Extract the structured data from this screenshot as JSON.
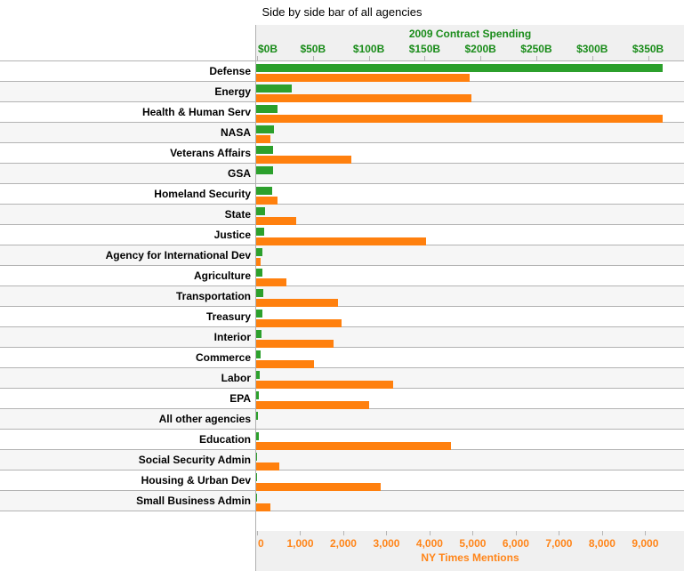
{
  "title": "Side by side bar of all agencies",
  "colors": {
    "spending_bar": "#2ca02c",
    "mentions_bar": "#ff800e",
    "spending_text": "#1a8c1a",
    "mentions_text": "#ff8519",
    "row_alt_bg": "#f6f6f6",
    "band_bg": "#f0f0f0",
    "grid_line": "#b3b3b3"
  },
  "top_axis": {
    "title": "2009 Contract Spending",
    "ticks": [
      {
        "label": "$0B",
        "value": 0
      },
      {
        "label": "$50B",
        "value": 50
      },
      {
        "label": "$100B",
        "value": 100
      },
      {
        "label": "$150B",
        "value": 150
      },
      {
        "label": "$200B",
        "value": 200
      },
      {
        "label": "$250B",
        "value": 250
      },
      {
        "label": "$300B",
        "value": 300
      },
      {
        "label": "$350B",
        "value": 350
      }
    ]
  },
  "bottom_axis": {
    "title": "NY Times Mentions",
    "ticks": [
      {
        "label": "0",
        "value": 0
      },
      {
        "label": "1,000",
        "value": 1000
      },
      {
        "label": "2,000",
        "value": 2000
      },
      {
        "label": "3,000",
        "value": 3000
      },
      {
        "label": "4,000",
        "value": 4000
      },
      {
        "label": "5,000",
        "value": 5000
      },
      {
        "label": "6,000",
        "value": 6000
      },
      {
        "label": "7,000",
        "value": 7000
      },
      {
        "label": "8,000",
        "value": 8000
      },
      {
        "label": "9,000",
        "value": 9000
      }
    ]
  },
  "chart_data": {
    "type": "bar",
    "orientation": "horizontal",
    "title": "Side by side bar of all agencies",
    "grid": false,
    "legend": false,
    "top_axis_label": "2009 Contract Spending",
    "bottom_axis_label": "NY Times Mentions",
    "top_axis_range": [
      0,
      383
    ],
    "bottom_axis_range": [
      0,
      9920
    ],
    "categories": [
      "Defense",
      "Energy",
      "Health & Human Serv",
      "NASA",
      "Veterans Affairs",
      "GSA",
      "Homeland Security",
      "State",
      "Justice",
      "Agency for International Dev",
      "Agriculture",
      "Transportation",
      "Treasury",
      "Interior",
      "Commerce",
      "Labor",
      "EPA",
      "All other agencies",
      "Education",
      "Social Security Admin",
      "Housing & Urban Dev",
      "Small Business Admin"
    ],
    "series": [
      {
        "name": "2009 Contract Spending",
        "axis": "top",
        "unit": "$B",
        "values": [
          364,
          32,
          19,
          16,
          15,
          15,
          14,
          8,
          7,
          5.5,
          5.5,
          6.5,
          5.5,
          5,
          4,
          3,
          2,
          1.5,
          2,
          0.3,
          0.5,
          0.2
        ]
      },
      {
        "name": "NY Times Mentions",
        "axis": "bottom",
        "unit": "mentions",
        "values": [
          4950,
          4990,
          9420,
          330,
          2210,
          0,
          500,
          930,
          3940,
          100,
          700,
          1900,
          1980,
          1790,
          1340,
          3180,
          2620,
          0,
          4510,
          530,
          2890,
          320
        ]
      }
    ]
  }
}
